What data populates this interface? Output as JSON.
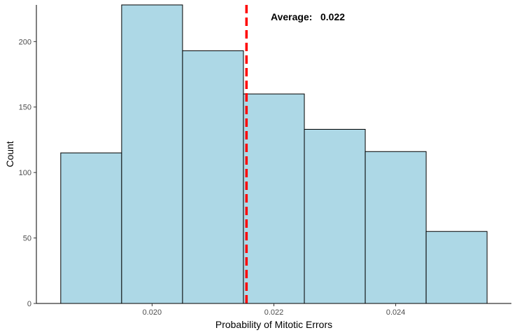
{
  "chart_data": {
    "type": "bar",
    "subtype": "histogram",
    "xlabel": "Probability of Mitotic Errors",
    "ylabel": "Count",
    "bins": [
      {
        "x0": 0.0185,
        "x1": 0.0195,
        "count": 115
      },
      {
        "x0": 0.0195,
        "x1": 0.0205,
        "count": 228
      },
      {
        "x0": 0.0205,
        "x1": 0.0215,
        "count": 193
      },
      {
        "x0": 0.0215,
        "x1": 0.0225,
        "count": 160
      },
      {
        "x0": 0.0225,
        "x1": 0.0235,
        "count": 133
      },
      {
        "x0": 0.0235,
        "x1": 0.0245,
        "count": 116
      },
      {
        "x0": 0.0245,
        "x1": 0.0255,
        "count": 55
      }
    ],
    "xlim": [
      0.0181,
      0.0259
    ],
    "ylim": [
      0,
      228
    ],
    "xticks": [
      {
        "value": 0.02,
        "label": "0.020"
      },
      {
        "value": 0.022,
        "label": "0.022"
      },
      {
        "value": 0.024,
        "label": "0.024"
      }
    ],
    "yticks": [
      {
        "value": 0,
        "label": "0"
      },
      {
        "value": 50,
        "label": "50"
      },
      {
        "value": 100,
        "label": "100"
      },
      {
        "value": 150,
        "label": "150"
      },
      {
        "value": 200,
        "label": "200"
      }
    ],
    "mean_line": {
      "value": 0.02155,
      "color": "#ff0000",
      "style": "dashed"
    },
    "annotation": {
      "label": "Average:",
      "value": "0.022"
    },
    "bar_fill": "#add8e6",
    "bar_stroke": "#000000",
    "grid": false
  }
}
